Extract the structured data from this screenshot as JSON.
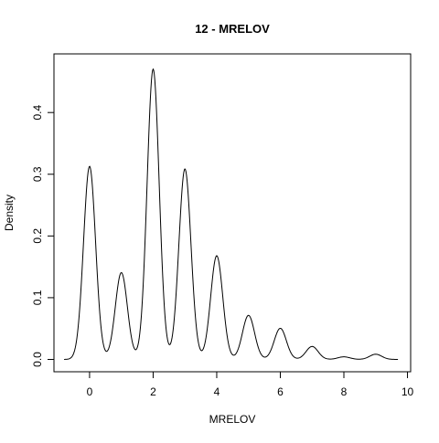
{
  "chart_data": {
    "type": "line",
    "title": "12 - MRELOV",
    "xlabel": "MRELOV",
    "ylabel": "Density",
    "xlim": [
      -1.12,
      10.1
    ],
    "ylim": [
      -0.02,
      0.495
    ],
    "x_ticks": [
      0,
      2,
      4,
      6,
      8,
      10
    ],
    "y_ticks": [
      0.0,
      0.1,
      0.2,
      0.3,
      0.4
    ],
    "x_tick_labels": [
      "0",
      "2",
      "4",
      "6",
      "8",
      "10"
    ],
    "y_tick_labels": [
      "0.0",
      "0.1",
      "0.2",
      "0.3",
      "0.4"
    ],
    "grid": false,
    "legend": "none",
    "line_color": "#000000",
    "series": [
      {
        "kde_components": {
          "bandwidth": 0.19,
          "centers": [
            0,
            1,
            2,
            3,
            4,
            5,
            6,
            7,
            8,
            9
          ],
          "weights": [
            0.149,
            0.067,
            0.224,
            0.147,
            0.08,
            0.034,
            0.024,
            0.01,
            0.002,
            0.004
          ]
        },
        "x_range": [
          -0.8,
          9.7
        ]
      }
    ],
    "peak_values": [
      {
        "x": 0,
        "y": 0.314
      },
      {
        "x": 1,
        "y": 0.141
      },
      {
        "x": 2,
        "y": 0.471
      },
      {
        "x": 3,
        "y": 0.311
      },
      {
        "x": 4,
        "y": 0.17
      },
      {
        "x": 5,
        "y": 0.072
      },
      {
        "x": 6,
        "y": 0.051
      },
      {
        "x": 7,
        "y": 0.021
      },
      {
        "x": 8,
        "y": 0.005
      },
      {
        "x": 9,
        "y": 0.009
      }
    ]
  }
}
